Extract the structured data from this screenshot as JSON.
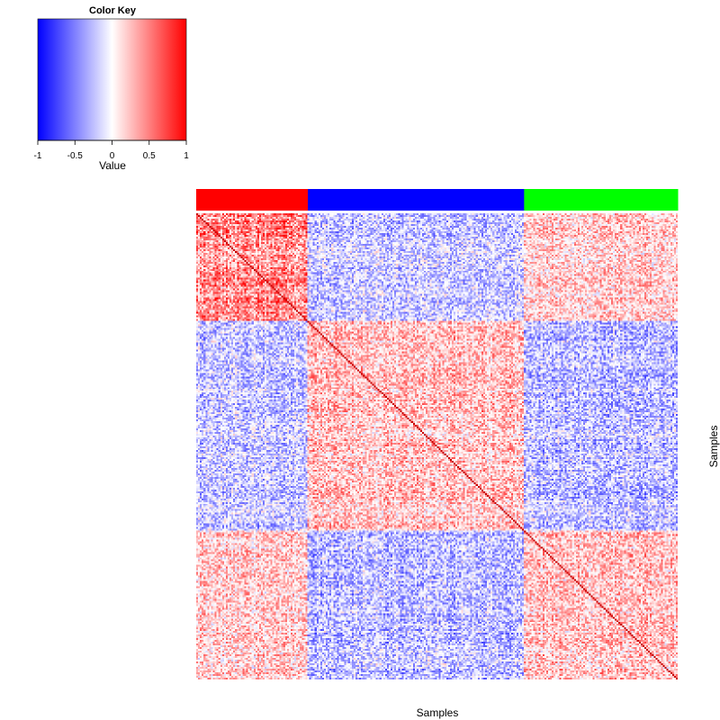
{
  "chart_data": {
    "type": "heatmap",
    "title": "",
    "xlabel": "Samples",
    "ylabel": "Samples",
    "matrix": "sample-sample correlation",
    "color_key": {
      "title": "Color Key",
      "label": "Value",
      "range": [
        -1,
        1
      ],
      "ticks": [
        "-1",
        "-0.5",
        "0",
        "0.5",
        "1"
      ],
      "tick_values": [
        -1,
        -0.5,
        0,
        0.5,
        1
      ],
      "colors": {
        "low": "#0000ff",
        "mid": "#ffffff",
        "high": "#ff0000"
      }
    },
    "groups": [
      {
        "color": "#ff0000",
        "fraction": 0.232
      },
      {
        "color": "#0000ff",
        "fraction": 0.449
      },
      {
        "color": "#00ff00",
        "fraction": 0.319
      }
    ],
    "block_mean_correlation": [
      [
        0.55,
        -0.25,
        0.25
      ],
      [
        -0.25,
        0.3,
        -0.3
      ],
      [
        0.25,
        -0.3,
        0.3
      ]
    ],
    "diagonal_value": 1,
    "grid": false,
    "legend_placement": "top-left"
  }
}
